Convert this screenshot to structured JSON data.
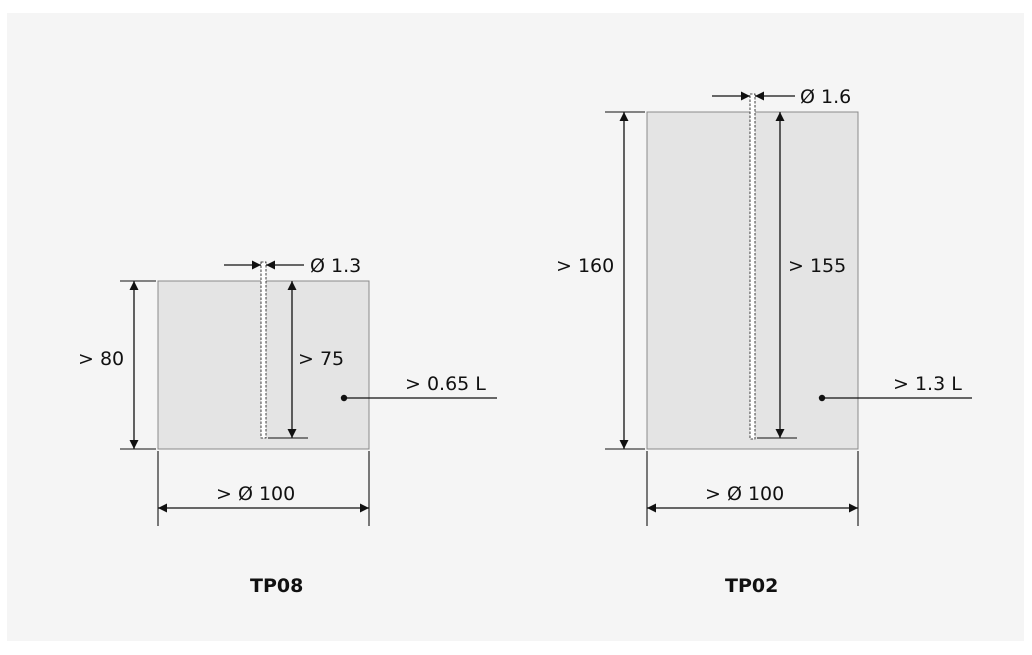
{
  "colors": {
    "page_background": "#ffffff",
    "panel_background": "#f5f5f5",
    "specimen_fill": "#e4e4e4",
    "specimen_outline": "#8a8a8a",
    "line_color": "#111111"
  },
  "specimens": {
    "tp08": {
      "name": "TP08",
      "hole_diameter_label": "Ø 1.3",
      "height_label": "> 80",
      "hole_depth_label": "> 75",
      "volume_label": "> 0.65 L",
      "diameter_label": "> Ø 100"
    },
    "tp02": {
      "name": "TP02",
      "hole_diameter_label": "Ø 1.6",
      "height_label": "> 160",
      "hole_depth_label": "> 155",
      "volume_label": "> 1.3 L",
      "diameter_label": "> Ø 100"
    }
  }
}
